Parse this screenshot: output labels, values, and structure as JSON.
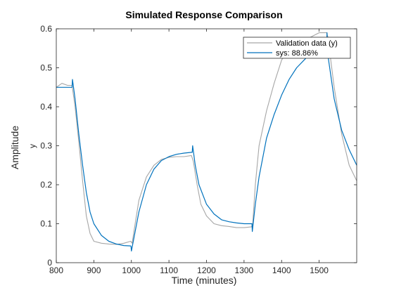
{
  "chart_data": {
    "type": "line",
    "title": "Simulated Response Comparison",
    "xlabel": "Time (minutes)",
    "ylabel": "Amplitude",
    "sub_ylabel": "y",
    "xlim": [
      800,
      1600
    ],
    "ylim": [
      0,
      0.6
    ],
    "xticks": [
      800,
      900,
      1000,
      1100,
      1200,
      1300,
      1400,
      1500
    ],
    "yticks": [
      0,
      0.1,
      0.2,
      0.3,
      0.4,
      0.5,
      0.6
    ],
    "legend_position": "top-right",
    "series": [
      {
        "name": "Validation data (y)",
        "color": "#a6a6a6",
        "x": [
          800,
          815,
          830,
          842,
          850,
          860,
          870,
          880,
          890,
          900,
          920,
          940,
          960,
          980,
          998,
          1002,
          1010,
          1020,
          1040,
          1060,
          1080,
          1100,
          1120,
          1140,
          1160,
          1165,
          1175,
          1185,
          1200,
          1220,
          1240,
          1260,
          1280,
          1300,
          1320,
          1323,
          1330,
          1340,
          1360,
          1380,
          1400,
          1420,
          1440,
          1460,
          1480,
          1500,
          1520,
          1523,
          1540,
          1560,
          1580,
          1600
        ],
        "y": [
          0.45,
          0.46,
          0.455,
          0.455,
          0.4,
          0.31,
          0.21,
          0.12,
          0.075,
          0.055,
          0.05,
          0.048,
          0.047,
          0.05,
          0.055,
          0.05,
          0.1,
          0.16,
          0.22,
          0.25,
          0.265,
          0.27,
          0.272,
          0.272,
          0.275,
          0.26,
          0.2,
          0.15,
          0.12,
          0.1,
          0.095,
          0.093,
          0.09,
          0.09,
          0.092,
          0.1,
          0.2,
          0.3,
          0.39,
          0.46,
          0.52,
          0.55,
          0.565,
          0.57,
          0.58,
          0.59,
          0.59,
          0.58,
          0.45,
          0.33,
          0.25,
          0.21
        ]
      },
      {
        "name": "sys: 88.86%",
        "color": "#0072bd",
        "x": [
          800,
          842,
          843,
          850,
          860,
          870,
          880,
          890,
          900,
          920,
          940,
          960,
          980,
          998,
          999,
          1000,
          1010,
          1020,
          1040,
          1060,
          1080,
          1100,
          1120,
          1140,
          1160,
          1162,
          1163,
          1170,
          1180,
          1200,
          1220,
          1240,
          1260,
          1280,
          1300,
          1320,
          1321,
          1322,
          1330,
          1340,
          1360,
          1380,
          1400,
          1420,
          1440,
          1460,
          1480,
          1500,
          1520,
          1521,
          1522,
          1540,
          1560,
          1580,
          1600
        ],
        "y": [
          0.45,
          0.45,
          0.47,
          0.42,
          0.33,
          0.25,
          0.18,
          0.13,
          0.1,
          0.07,
          0.055,
          0.048,
          0.044,
          0.043,
          0.042,
          0.03,
          0.08,
          0.13,
          0.2,
          0.24,
          0.262,
          0.272,
          0.278,
          0.281,
          0.283,
          0.283,
          0.3,
          0.25,
          0.2,
          0.15,
          0.125,
          0.11,
          0.105,
          0.102,
          0.1,
          0.1,
          0.1,
          0.08,
          0.15,
          0.22,
          0.32,
          0.38,
          0.43,
          0.47,
          0.5,
          0.52,
          0.54,
          0.55,
          0.56,
          0.59,
          0.54,
          0.42,
          0.34,
          0.29,
          0.25
        ]
      }
    ]
  }
}
